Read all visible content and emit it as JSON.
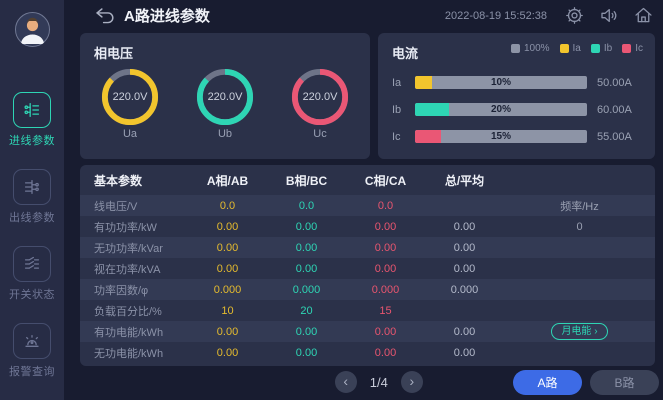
{
  "header": {
    "title": "A路进线参数",
    "datetime": "2022-08-19 15:52:38",
    "icons": [
      "back-arrow",
      "gear",
      "speaker",
      "home"
    ]
  },
  "sidebar": {
    "items": [
      {
        "label": "进线参数",
        "icon": "incoming-line",
        "active": true
      },
      {
        "label": "出线参数",
        "icon": "outgoing-line",
        "active": false
      },
      {
        "label": "开关状态",
        "icon": "switch-status",
        "active": false
      },
      {
        "label": "报警查询",
        "icon": "alarm-query",
        "active": false
      }
    ]
  },
  "voltage": {
    "title": "相电压",
    "gauges": [
      {
        "value": "220.0V",
        "label": "Ua",
        "color": "#f2c52d",
        "arc_percent": 87
      },
      {
        "value": "220.0V",
        "label": "Ub",
        "color": "#2ed5b4",
        "arc_percent": 87
      },
      {
        "value": "220.0V",
        "label": "Uc",
        "color": "#ea5775",
        "arc_percent": 87
      }
    ],
    "rest_color": "#6e7488"
  },
  "current": {
    "title": "电流",
    "track_color": "#8d94a6",
    "legend": [
      {
        "label": "100%",
        "color": "#8d94a6"
      },
      {
        "label": "Ia",
        "color": "#f2c52d"
      },
      {
        "label": "Ib",
        "color": "#2ed5b4"
      },
      {
        "label": "Ic",
        "color": "#ea5775"
      }
    ],
    "bars": [
      {
        "label": "Ia",
        "percent": 10,
        "percent_label": "10%",
        "value": "50.00A",
        "color": "#f2c52d"
      },
      {
        "label": "Ib",
        "percent": 20,
        "percent_label": "20%",
        "value": "60.00A",
        "color": "#2ed5b4"
      },
      {
        "label": "Ic",
        "percent": 15,
        "percent_label": "15%",
        "value": "55.00A",
        "color": "#ea5775"
      }
    ]
  },
  "table": {
    "headers": [
      "基本参数",
      "A相/AB",
      "B相/BC",
      "C相/CA",
      "总/平均"
    ],
    "column_colors": {
      "a": "#e5bb2e",
      "b": "#2ed5b4",
      "c": "#e8556f",
      "total": "#b3b9ca",
      "extra": "#9aa0b2"
    },
    "rows": [
      {
        "label": "线电压/V",
        "a": "0.0",
        "b": "0.0",
        "c": "0.0",
        "total": "",
        "extra": "频率/Hz"
      },
      {
        "label": "有功功率/kW",
        "a": "0.00",
        "b": "0.00",
        "c": "0.00",
        "total": "0.00",
        "extra": "0"
      },
      {
        "label": "无功功率/kVar",
        "a": "0.00",
        "b": "0.00",
        "c": "0.00",
        "total": "0.00",
        "extra": ""
      },
      {
        "label": "视在功率/kVA",
        "a": "0.00",
        "b": "0.00",
        "c": "0.00",
        "total": "0.00",
        "extra": ""
      },
      {
        "label": "功率因数/φ",
        "a": "0.000",
        "b": "0.000",
        "c": "0.000",
        "total": "0.000",
        "extra": ""
      },
      {
        "label": "负载百分比/%",
        "a": "10",
        "b": "20",
        "c": "15",
        "total": "",
        "extra": ""
      },
      {
        "label": "有功电能/kWh",
        "a": "0.00",
        "b": "0.00",
        "c": "0.00",
        "total": "0.00",
        "extra": "月电能",
        "extra_type": "button",
        "extra_chevron": "›"
      },
      {
        "label": "无功电能/kWh",
        "a": "0.00",
        "b": "0.00",
        "c": "0.00",
        "total": "0.00",
        "extra": ""
      }
    ]
  },
  "footer": {
    "pagination": {
      "prev_icon": "‹",
      "current": "1/4",
      "next_icon": "›"
    },
    "buttons": [
      {
        "label": "A路",
        "active": true
      },
      {
        "label": "B路",
        "active": false
      }
    ]
  },
  "colors": {
    "page_bg": "#181c30",
    "sidebar_bg": "#272c45",
    "panel_bg": "#2b3149",
    "row_stripe": "#333a54",
    "accent": "#2ed5b4",
    "blue": "#3d6be6"
  }
}
